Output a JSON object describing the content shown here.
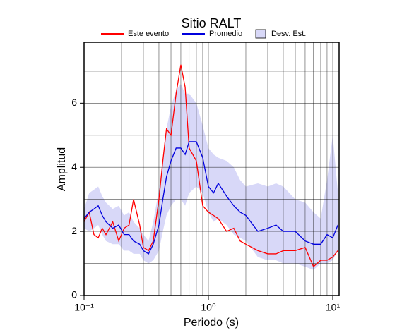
{
  "chart_data": {
    "type": "line",
    "title": "Sitio RALT",
    "x_label": "Periodo (s)",
    "y_label": "Amplitud",
    "x_scale": "log",
    "xlim": [
      0.1,
      11.25
    ],
    "ylim": [
      0,
      7.9
    ],
    "xticks": [
      {
        "value": 0.1,
        "label": "10⁻¹"
      },
      {
        "value": 1,
        "label": "10⁰"
      },
      {
        "value": 10,
        "label": "10¹"
      }
    ],
    "yticks": [
      0,
      2,
      4,
      6
    ],
    "x_grid": [
      0.2,
      0.3,
      0.4,
      0.5,
      0.6,
      0.7,
      0.8,
      0.9,
      1,
      2,
      3,
      4,
      5,
      6,
      7,
      8,
      9,
      10
    ],
    "y_grid": [
      1,
      2,
      3,
      4,
      5,
      6,
      7
    ],
    "legend": "top",
    "x": [
      0.1,
      0.11,
      0.12,
      0.13,
      0.14,
      0.15,
      0.17,
      0.19,
      0.21,
      0.23,
      0.25,
      0.28,
      0.3,
      0.33,
      0.36,
      0.4,
      0.43,
      0.46,
      0.5,
      0.55,
      0.6,
      0.65,
      0.7,
      0.8,
      0.9,
      1.0,
      1.1,
      1.2,
      1.4,
      1.6,
      1.8,
      2.0,
      2.5,
      3.0,
      3.5,
      4,
      5,
      6,
      7,
      8,
      9,
      10,
      11
    ],
    "series": [
      {
        "name": "Este evento",
        "color": "#ff0000",
        "values": [
          2.3,
          2.6,
          1.9,
          1.8,
          2.1,
          1.9,
          2.3,
          1.7,
          2.1,
          2.2,
          3.0,
          2.2,
          1.5,
          1.4,
          1.7,
          3.0,
          4.2,
          5.2,
          5.0,
          6.3,
          7.2,
          6.5,
          4.6,
          4.2,
          2.8,
          2.6,
          2.5,
          2.4,
          2.0,
          2.1,
          1.7,
          1.6,
          1.4,
          1.3,
          1.3,
          1.4,
          1.4,
          1.5,
          0.9,
          1.1,
          1.1,
          1.2,
          1.4
        ]
      },
      {
        "name": "Promedio",
        "color": "#0000dd",
        "values": [
          2.4,
          2.6,
          2.7,
          2.8,
          2.5,
          2.3,
          2.1,
          2.2,
          1.9,
          1.9,
          1.7,
          1.6,
          1.4,
          1.3,
          1.6,
          2.2,
          3.0,
          3.7,
          4.2,
          4.6,
          4.6,
          4.4,
          4.8,
          4.8,
          4.3,
          3.4,
          3.2,
          3.5,
          3.1,
          2.8,
          2.6,
          2.5,
          2.0,
          2.1,
          2.2,
          2.0,
          2.0,
          1.7,
          1.6,
          1.6,
          1.9,
          1.8,
          2.2
        ]
      },
      {
        "name": "Desv. Est.",
        "color": "#d8d8f8",
        "upper": [
          2.7,
          3.2,
          3.3,
          3.4,
          3.1,
          2.9,
          2.7,
          2.8,
          2.5,
          2.6,
          2.3,
          2.1,
          1.9,
          1.7,
          2.3,
          3.3,
          4.3,
          5.2,
          5.9,
          6.4,
          6.6,
          6.3,
          6.3,
          6.0,
          5.3,
          4.6,
          4.4,
          4.3,
          4.2,
          4.0,
          3.6,
          3.4,
          3.5,
          3.4,
          3.5,
          3.4,
          3.0,
          2.9,
          2.6,
          2.4,
          3.6,
          5.0,
          3.2
        ],
        "lower": [
          2.1,
          2.0,
          2.1,
          2.2,
          1.9,
          1.7,
          1.6,
          1.6,
          1.4,
          1.4,
          1.3,
          1.3,
          1.1,
          1.0,
          1.1,
          1.4,
          2.0,
          2.5,
          2.8,
          3.0,
          3.0,
          2.8,
          3.2,
          3.4,
          3.2,
          2.6,
          2.3,
          2.4,
          2.2,
          1.9,
          1.8,
          1.7,
          1.2,
          1.1,
          1.1,
          1.0,
          1.0,
          0.9,
          0.8,
          1.0,
          1.0,
          1.1,
          1.4
        ]
      }
    ]
  }
}
